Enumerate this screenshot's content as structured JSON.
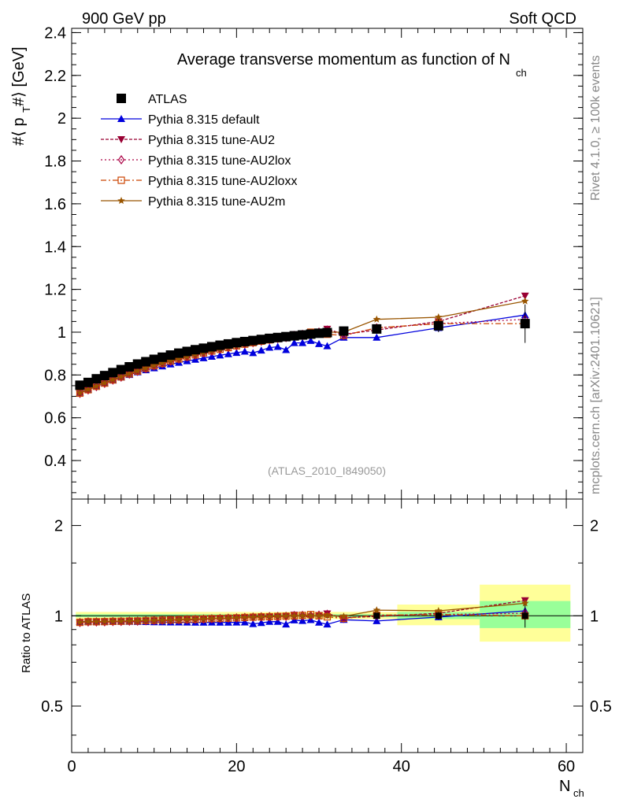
{
  "header": {
    "left": "900 GeV pp",
    "right": "Soft QCD"
  },
  "side_labels": {
    "rivet": "Rivet 4.1.0, ≥ 100k events",
    "mcplots": "mcplots.cern.ch [arXiv:2401.10621]"
  },
  "chart_data": {
    "type": "line",
    "title": "Average transverse momentum as function of N",
    "title_sub": "ch",
    "analysis_tag": "(ATLAS_2010_I849050)",
    "ylabel": "#⟨ p  #⟩ [GeV]",
    "ylabel_main": "#⟨ p",
    "ylabel_sub": "T",
    "ylabel_rest": " #⟩ [GeV]",
    "ratio_ylabel": "Ratio to ATLAS",
    "xlabel": "N",
    "xlabel_sub": "ch",
    "xlim": [
      0,
      62
    ],
    "ylim": [
      0.22,
      2.42
    ],
    "ratio_ylim_log": [
      0.35,
      2.45
    ],
    "x_ticks": [
      0,
      20,
      40,
      60
    ],
    "y_ticks": [
      0.4,
      0.6,
      0.8,
      1,
      1.2,
      1.4,
      1.6,
      1.8,
      2,
      2.2,
      2.4
    ],
    "y_tick_labels": [
      "0.4",
      "0.6",
      "0.8",
      "1",
      "1.2",
      "1.4",
      "1.6",
      "1.8",
      "2",
      "2.2",
      "2.4"
    ],
    "ratio_ticks": [
      0.5,
      1,
      2
    ],
    "ratio_tick_labels": [
      "0.5",
      "1",
      "2"
    ],
    "x_tick_labels": [
      "0",
      "20",
      "40",
      "60"
    ],
    "x": [
      1,
      2,
      3,
      4,
      5,
      6,
      7,
      8,
      9,
      10,
      11,
      12,
      13,
      14,
      15,
      16,
      17,
      18,
      19,
      20,
      21,
      22,
      23,
      24,
      25,
      26,
      27,
      28,
      29,
      30,
      31,
      33,
      37,
      44.5,
      55
    ],
    "series": [
      {
        "name": "ATLAS",
        "color": "#000000",
        "marker": "square",
        "dash": "",
        "values": [
          0.752,
          0.765,
          0.782,
          0.797,
          0.811,
          0.825,
          0.838,
          0.851,
          0.862,
          0.873,
          0.883,
          0.893,
          0.902,
          0.91,
          0.918,
          0.925,
          0.932,
          0.939,
          0.945,
          0.951,
          0.956,
          0.961,
          0.966,
          0.971,
          0.975,
          0.979,
          0.983,
          0.987,
          0.991,
          0.995,
          0.998,
          1.005,
          1.015,
          1.03,
          1.04
        ],
        "errors": [
          0.005,
          0.005,
          0.005,
          0.005,
          0.005,
          0.005,
          0.005,
          0.005,
          0.005,
          0.005,
          0.005,
          0.005,
          0.005,
          0.005,
          0.005,
          0.005,
          0.005,
          0.005,
          0.005,
          0.005,
          0.005,
          0.005,
          0.005,
          0.005,
          0.005,
          0.005,
          0.005,
          0.005,
          0.005,
          0.005,
          0.005,
          0.01,
          0.015,
          0.03,
          0.09
        ]
      },
      {
        "name": "Pythia 8.315 default",
        "color": "#0000dd",
        "marker": "triangle-up",
        "dash": "",
        "values": [
          0.718,
          0.733,
          0.748,
          0.762,
          0.775,
          0.789,
          0.801,
          0.813,
          0.823,
          0.832,
          0.841,
          0.85,
          0.858,
          0.865,
          0.872,
          0.879,
          0.886,
          0.892,
          0.898,
          0.904,
          0.91,
          0.903,
          0.915,
          0.928,
          0.932,
          0.917,
          0.95,
          0.95,
          0.96,
          0.945,
          0.935,
          0.975,
          0.975,
          1.02,
          1.08
        ],
        "errors": []
      },
      {
        "name": "Pythia 8.315 tune-AU2",
        "color": "#990033",
        "marker": "triangle-down",
        "dash": "4,2",
        "values": [
          0.712,
          0.728,
          0.744,
          0.759,
          0.774,
          0.788,
          0.802,
          0.815,
          0.828,
          0.84,
          0.851,
          0.862,
          0.872,
          0.882,
          0.891,
          0.9,
          0.909,
          0.918,
          0.926,
          0.934,
          0.942,
          0.95,
          0.957,
          0.964,
          0.972,
          0.975,
          0.99,
          0.98,
          0.985,
          1.0,
          1.015,
          0.99,
          1.01,
          1.05,
          1.17
        ],
        "errors": []
      },
      {
        "name": "Pythia 8.315 tune-AU2lox",
        "color": "#aa0044",
        "marker": "diamond-open",
        "dash": "2,3",
        "values": [
          0.714,
          0.73,
          0.746,
          0.761,
          0.776,
          0.79,
          0.804,
          0.817,
          0.83,
          0.842,
          0.853,
          0.864,
          0.874,
          0.884,
          0.893,
          0.902,
          0.911,
          0.92,
          0.928,
          0.936,
          0.944,
          0.951,
          0.958,
          0.965,
          0.97,
          0.975,
          0.985,
          0.99,
          0.992,
          1.0,
          1.01,
          0.985,
          1.02,
          1.04,
          1.06
        ],
        "errors": []
      },
      {
        "name": "Pythia 8.315 tune-AU2loxx",
        "color": "#cc4400",
        "marker": "square-open",
        "dash": "7,3,2,3",
        "values": [
          0.715,
          0.731,
          0.747,
          0.762,
          0.777,
          0.791,
          0.805,
          0.818,
          0.831,
          0.843,
          0.854,
          0.865,
          0.875,
          0.885,
          0.894,
          0.903,
          0.912,
          0.92,
          0.928,
          0.936,
          0.944,
          0.951,
          0.958,
          0.964,
          0.97,
          0.976,
          0.982,
          0.99,
          1.0,
          0.995,
          0.99,
          0.985,
          1.02,
          1.04,
          1.04
        ],
        "errors": []
      },
      {
        "name": "Pythia 8.315 tune-AU2m",
        "color": "#995500",
        "marker": "star",
        "dash": "",
        "values": [
          0.716,
          0.732,
          0.748,
          0.763,
          0.778,
          0.792,
          0.806,
          0.819,
          0.832,
          0.844,
          0.855,
          0.866,
          0.876,
          0.886,
          0.895,
          0.904,
          0.913,
          0.921,
          0.929,
          0.937,
          0.945,
          0.952,
          0.959,
          0.966,
          0.972,
          0.978,
          0.983,
          0.988,
          0.992,
          0.996,
          1.0,
          1.0,
          1.06,
          1.07,
          1.145
        ],
        "errors": []
      }
    ],
    "ratio_bands": [
      {
        "x_from": 0.5,
        "x_to": 39.5,
        "yellow": [
          0.975,
          1.03
        ],
        "green": [
          0.99,
          1.012
        ]
      },
      {
        "x_from": 39.5,
        "x_to": 49.5,
        "yellow": [
          0.93,
          1.09
        ],
        "green": [
          0.975,
          1.03
        ]
      },
      {
        "x_from": 49.5,
        "x_to": 60.5,
        "yellow": [
          0.82,
          1.27
        ],
        "green": [
          0.91,
          1.12
        ]
      }
    ],
    "colors": {
      "band_yellow": "#ffff99",
      "band_green": "#99ff99"
    }
  }
}
